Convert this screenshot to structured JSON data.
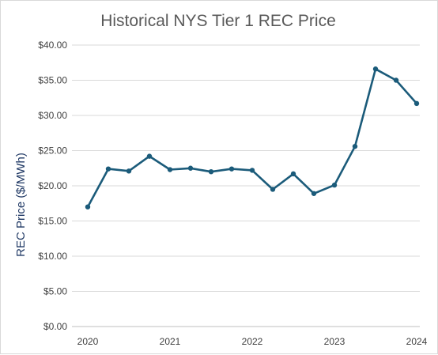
{
  "chart_data": {
    "type": "line",
    "title": "Historical NYS Tier 1 REC Price",
    "ylabel": "REC Price ($/MWh)",
    "xlabel": "",
    "ylim": [
      0,
      40
    ],
    "yticks": [
      0,
      5,
      10,
      15,
      20,
      25,
      30,
      35,
      40
    ],
    "ytick_labels": [
      "$0.00",
      "$5.00",
      "$10.00",
      "$15.00",
      "$20.00",
      "$25.00",
      "$30.00",
      "$35.00",
      "$40.00"
    ],
    "xlim": [
      2020,
      2024
    ],
    "xticks": [
      2020,
      2021,
      2022,
      2023,
      2024
    ],
    "xtick_labels": [
      "2020",
      "2021",
      "2022",
      "2023",
      "2024"
    ],
    "grid": true,
    "color": "#1b5b7a",
    "series": [
      {
        "x": [
          2020.0,
          2020.25,
          2020.5,
          2020.75,
          2021.0,
          2021.25,
          2021.5,
          2021.75,
          2022.0,
          2022.25,
          2022.5,
          2022.75,
          2023.0,
          2023.25,
          2023.5,
          2023.75,
          2024.0
        ],
        "values": [
          17.0,
          22.4,
          22.1,
          24.2,
          22.3,
          22.5,
          22.0,
          22.4,
          22.2,
          19.5,
          21.7,
          18.9,
          20.1,
          25.6,
          36.6,
          35.0,
          31.7
        ]
      }
    ]
  }
}
